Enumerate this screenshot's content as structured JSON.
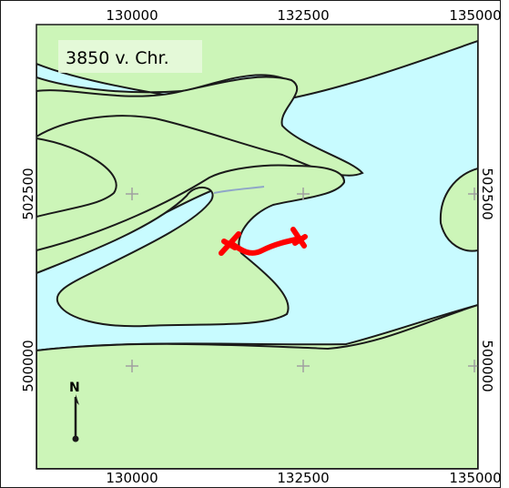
{
  "map": {
    "era_label": "3850 v. Chr.",
    "colors": {
      "land": "#ccf5b8",
      "water": "#c8fbff",
      "outline": "#1a1a1a",
      "route": "#ff0000",
      "grid_cross": "#a0a0a0",
      "stream": "#8fa6c8"
    },
    "x_ticks": [
      "130000",
      "132500",
      "135000"
    ],
    "y_ticks": [
      "502500",
      "500000"
    ],
    "north_arrow": {
      "label": "N",
      "icon": "north-arrow-icon"
    }
  }
}
